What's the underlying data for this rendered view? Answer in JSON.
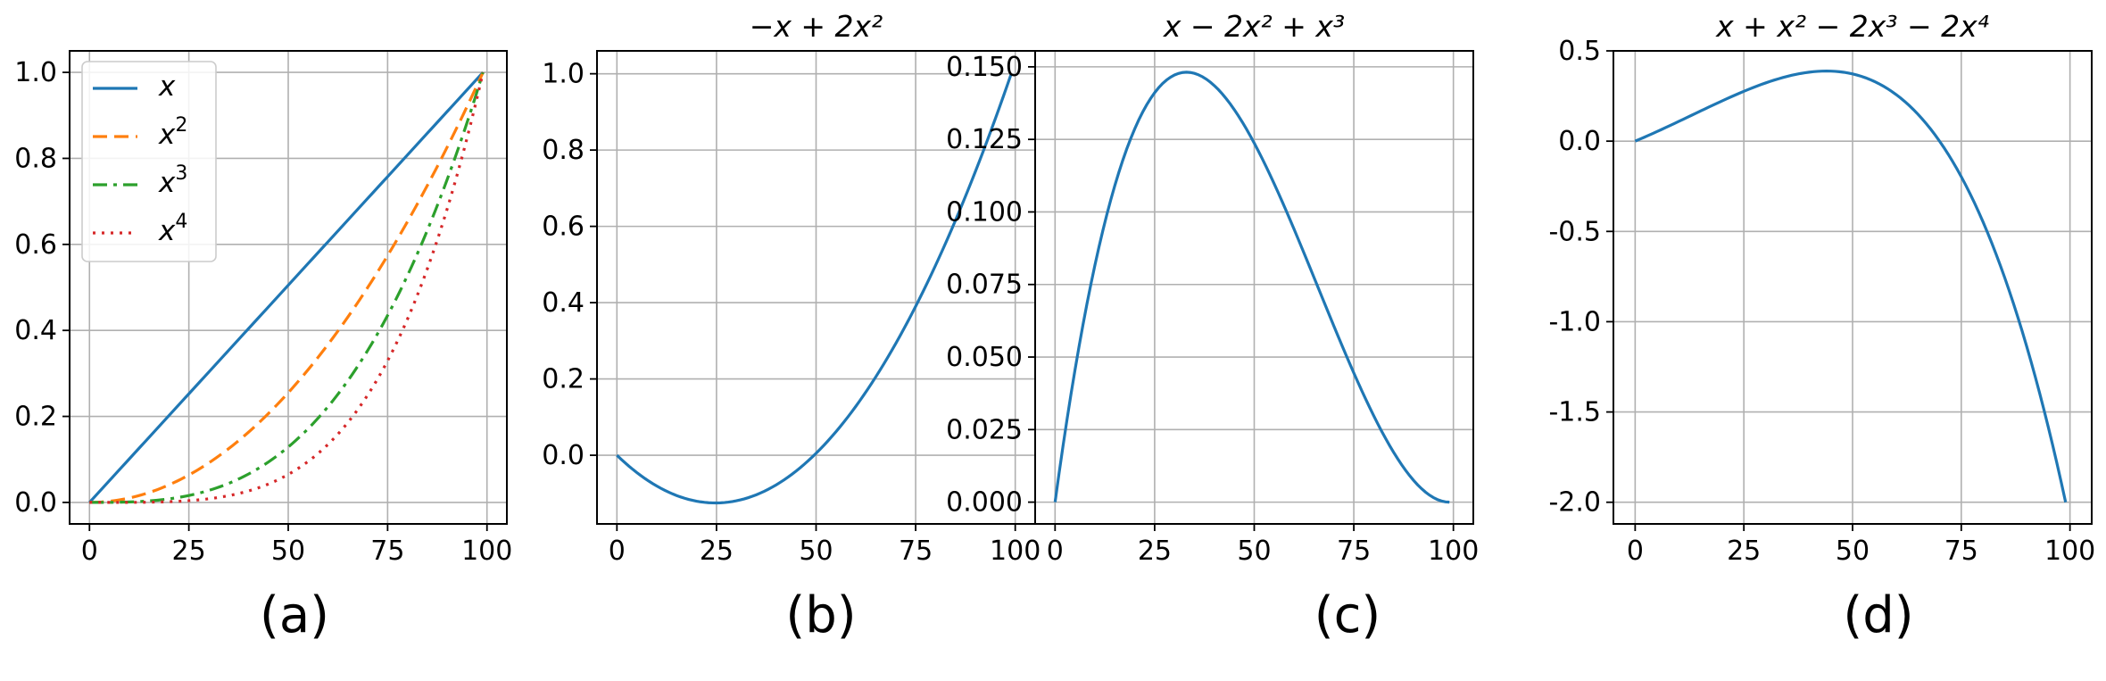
{
  "chart_data": [
    {
      "type": "line",
      "caption": "(a)",
      "title": "",
      "xlabel": "",
      "ylabel": "",
      "xlim": [
        -5,
        105
      ],
      "ylim": [
        -0.05,
        1.05
      ],
      "xticks": [
        0,
        25,
        50,
        75,
        100
      ],
      "xtick_labels": [
        "0",
        "25",
        "50",
        "75",
        "100"
      ],
      "yticks": [
        0.0,
        0.2,
        0.4,
        0.6,
        0.8,
        1.0
      ],
      "ytick_labels": [
        "0.0",
        "0.2",
        "0.4",
        "0.6",
        "0.8",
        "1.0"
      ],
      "grid": true,
      "legend": "top-left",
      "x_range": [
        0,
        99
      ],
      "series": [
        {
          "name": "x",
          "power_label": "",
          "expr": [
            0,
            1
          ],
          "color": "#1f77b4",
          "style": "solid"
        },
        {
          "name": "x",
          "power_label": "2",
          "expr": [
            0,
            0,
            1
          ],
          "color": "#ff7f0e",
          "style": "dashed"
        },
        {
          "name": "x",
          "power_label": "3",
          "expr": [
            0,
            0,
            0,
            1
          ],
          "color": "#2ca02c",
          "style": "dashdot"
        },
        {
          "name": "x",
          "power_label": "4",
          "expr": [
            0,
            0,
            0,
            0,
            1
          ],
          "color": "#d62728",
          "style": "dotted"
        }
      ]
    },
    {
      "type": "line",
      "caption": "(b)",
      "title": "−x + 2x²",
      "xlabel": "",
      "ylabel": "",
      "xlim": [
        -5,
        105
      ],
      "ylim": [
        -0.18,
        1.06
      ],
      "xticks": [
        0,
        25,
        50,
        75,
        100
      ],
      "xtick_labels": [
        "0",
        "25",
        "50",
        "75",
        "100"
      ],
      "yticks": [
        0.0,
        0.2,
        0.4,
        0.6,
        0.8,
        1.0
      ],
      "ytick_labels": [
        "0.0",
        "0.2",
        "0.4",
        "0.6",
        "0.8",
        "1.0"
      ],
      "grid": true,
      "x_range": [
        0,
        99
      ],
      "series": [
        {
          "expr": [
            0,
            -1,
            2
          ],
          "color": "#1f77b4",
          "style": "solid"
        }
      ]
    },
    {
      "type": "line",
      "caption": "(c)",
      "title": "x − 2x² + x³",
      "xlabel": "",
      "ylabel": "",
      "xlim": [
        -5,
        105
      ],
      "ylim": [
        -0.0075,
        0.1555
      ],
      "xticks": [
        0,
        25,
        50,
        75,
        100
      ],
      "xtick_labels": [
        "0",
        "25",
        "50",
        "75",
        "100"
      ],
      "yticks": [
        0.0,
        0.025,
        0.05,
        0.075,
        0.1,
        0.125,
        0.15
      ],
      "ytick_labels": [
        "0.000",
        "0.025",
        "0.050",
        "0.075",
        "0.100",
        "0.125",
        "0.150"
      ],
      "grid": true,
      "x_range": [
        0,
        99
      ],
      "series": [
        {
          "expr": [
            0,
            1,
            -2,
            1
          ],
          "color": "#1f77b4",
          "style": "solid"
        }
      ]
    },
    {
      "type": "line",
      "caption": "(d)",
      "title": "x + x² − 2x³ − 2x⁴",
      "xlabel": "",
      "ylabel": "",
      "xlim": [
        -5,
        105
      ],
      "ylim": [
        -2.12,
        0.5
      ],
      "xticks": [
        0,
        25,
        50,
        75,
        100
      ],
      "xtick_labels": [
        "0",
        "25",
        "50",
        "75",
        "100"
      ],
      "yticks": [
        -2.0,
        -1.5,
        -1.0,
        -0.5,
        0.0,
        0.5
      ],
      "ytick_labels": [
        "-2.0",
        "-1.5",
        "-1.0",
        "-0.5",
        "0.0",
        "0.5"
      ],
      "grid": true,
      "x_range": [
        0,
        99
      ],
      "series": [
        {
          "expr": [
            0,
            1,
            1,
            -2,
            -2
          ],
          "color": "#1f77b4",
          "style": "solid"
        }
      ]
    }
  ]
}
